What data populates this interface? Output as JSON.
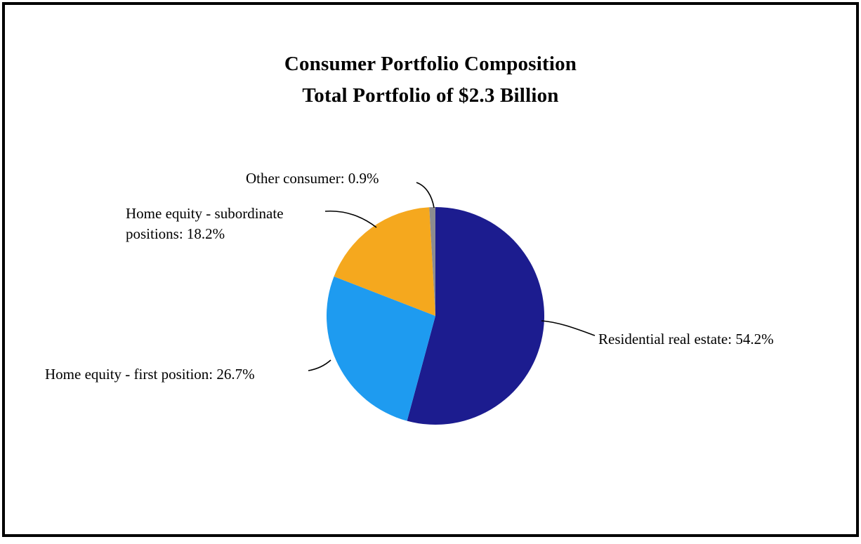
{
  "chart_data": {
    "type": "pie",
    "title": "Consumer Portfolio Composition",
    "subtitle": "Total Portfolio of $2.3 Billion",
    "total_portfolio": "$2.3 Billion",
    "direction": "clockwise",
    "start_angle_deg": -90,
    "slices": [
      {
        "label": "Residential real estate",
        "value": 54.2,
        "color": "#1c1c8f"
      },
      {
        "label": "Home equity - first position",
        "value": 26.7,
        "color": "#1e9bf0"
      },
      {
        "label": "Home equity - subordinate positions",
        "value": 18.2,
        "color": "#f5a81e"
      },
      {
        "label": "Other consumer",
        "value": 0.9,
        "color": "#8c8c90"
      }
    ],
    "labels": {
      "residential": "Residential real estate: 54.2%",
      "first_position": "Home equity - first position: 26.7%",
      "subordinate": "Home equity - subordinate positions: 18.2%",
      "other": "Other consumer: 0.9%"
    }
  }
}
